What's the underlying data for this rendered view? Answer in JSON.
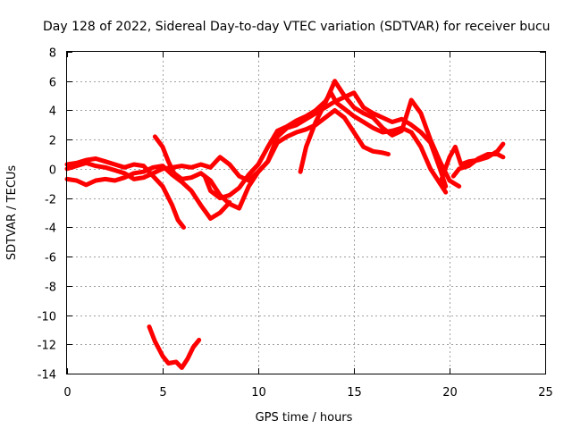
{
  "chart_data": {
    "type": "scatter",
    "title": "Day 128 of 2022, Sidereal Day-to-day VTEC variation (SDTVAR) for receiver bucu",
    "xlabel": "GPS time / hours",
    "ylabel": "SDTVAR / TECUs",
    "xlim": [
      0,
      25
    ],
    "ylim": [
      -14,
      8
    ],
    "xticks": [
      0,
      5,
      10,
      15,
      20,
      25
    ],
    "yticks": [
      8,
      6,
      4,
      2,
      0,
      -2,
      -4,
      -6,
      -8,
      -10,
      -12,
      -14
    ],
    "grid": true,
    "marker_color": "#ff0000",
    "series": [
      {
        "name": "track-1",
        "points": [
          [
            0,
            0.3
          ],
          [
            0.5,
            0.4
          ],
          [
            1,
            0.6
          ],
          [
            1.5,
            0.7
          ],
          [
            2,
            0.5
          ],
          [
            2.5,
            0.3
          ],
          [
            3,
            0.1
          ],
          [
            3.5,
            0.3
          ],
          [
            4,
            0.2
          ],
          [
            4.5,
            -0.5
          ],
          [
            5,
            -1.2
          ],
          [
            5.5,
            -2.5
          ],
          [
            5.8,
            -3.5
          ],
          [
            6.1,
            -4
          ]
        ]
      },
      {
        "name": "track-2",
        "points": [
          [
            0,
            -0.7
          ],
          [
            0.5,
            -0.8
          ],
          [
            1,
            -1.1
          ],
          [
            1.5,
            -0.8
          ],
          [
            2,
            -0.7
          ],
          [
            2.5,
            -0.8
          ],
          [
            3,
            -0.6
          ],
          [
            3.5,
            -0.3
          ],
          [
            4,
            -0.2
          ],
          [
            4.5,
            0.1
          ],
          [
            5,
            0.2
          ],
          [
            5.5,
            -0.4
          ],
          [
            6,
            -0.9
          ],
          [
            6.5,
            -1.5
          ],
          [
            7,
            -2.5
          ],
          [
            7.5,
            -3.4
          ],
          [
            8,
            -3
          ],
          [
            8.5,
            -2.3
          ]
        ]
      },
      {
        "name": "track-3",
        "points": [
          [
            0,
            0
          ],
          [
            0.5,
            0.2
          ],
          [
            1,
            0.4
          ],
          [
            1.5,
            0.2
          ],
          [
            2,
            0.1
          ],
          [
            2.5,
            -0.1
          ],
          [
            3,
            -0.3
          ],
          [
            3.5,
            -0.7
          ],
          [
            4,
            -0.6
          ],
          [
            4.5,
            -0.3
          ],
          [
            5,
            0
          ],
          [
            5.5,
            0.1
          ],
          [
            6,
            0.2
          ],
          [
            6.5,
            0.1
          ],
          [
            7,
            0.3
          ],
          [
            7.5,
            0.1
          ],
          [
            8,
            0.8
          ],
          [
            8.5,
            0.3
          ],
          [
            9,
            -0.5
          ],
          [
            9.5,
            -0.8
          ],
          [
            10,
            -0.2
          ],
          [
            10.5,
            0.5
          ],
          [
            11,
            1.8
          ],
          [
            11.5,
            2.2
          ],
          [
            12,
            2.5
          ],
          [
            12.5,
            2.7
          ],
          [
            13,
            3
          ],
          [
            13.5,
            3.5
          ],
          [
            14,
            4
          ],
          [
            14.5,
            3.5
          ],
          [
            15,
            2.5
          ],
          [
            15.5,
            1.5
          ],
          [
            16,
            1.2
          ],
          [
            16.5,
            1.1
          ],
          [
            16.8,
            1
          ]
        ]
      },
      {
        "name": "track-4",
        "points": [
          [
            4.6,
            2.2
          ],
          [
            5,
            1.5
          ],
          [
            5.3,
            0.5
          ],
          [
            5.6,
            -0.3
          ],
          [
            6,
            -0.7
          ],
          [
            6.5,
            -0.6
          ],
          [
            7,
            -0.3
          ],
          [
            7.5,
            -0.8
          ],
          [
            8,
            -1.8
          ],
          [
            8.5,
            -2.4
          ],
          [
            9,
            -2.7
          ],
          [
            9.5,
            -1.2
          ],
          [
            10,
            -0.2
          ],
          [
            10.5,
            0.5
          ],
          [
            11,
            2.2
          ],
          [
            11.5,
            2.8
          ],
          [
            12,
            3
          ],
          [
            12.5,
            3.4
          ],
          [
            13,
            3.8
          ],
          [
            13.5,
            4.2
          ],
          [
            14,
            4.6
          ],
          [
            14.5,
            4.9
          ],
          [
            15,
            5.2
          ],
          [
            15.5,
            4.2
          ],
          [
            16,
            3.8
          ],
          [
            16.5,
            3.5
          ],
          [
            17,
            3.2
          ],
          [
            17.5,
            3.4
          ],
          [
            18,
            3
          ],
          [
            18.5,
            2.5
          ],
          [
            19,
            1.8
          ],
          [
            19.5,
            0
          ],
          [
            19.8,
            -1.2
          ]
        ]
      },
      {
        "name": "track-5",
        "points": [
          [
            7.2,
            -0.5
          ],
          [
            7.5,
            -1.5
          ],
          [
            8,
            -2
          ],
          [
            8.5,
            -1.8
          ],
          [
            9,
            -1.3
          ],
          [
            9.5,
            -0.4
          ],
          [
            10,
            0.3
          ],
          [
            10.5,
            1.5
          ],
          [
            11,
            2.6
          ],
          [
            11.5,
            2.9
          ],
          [
            12,
            3.3
          ],
          [
            12.5,
            3.6
          ],
          [
            13,
            4
          ],
          [
            13.5,
            4.6
          ],
          [
            13.8,
            5.2
          ],
          [
            14.1,
            4.5
          ],
          [
            14.5,
            4.1
          ],
          [
            15,
            3.6
          ],
          [
            15.5,
            3.2
          ],
          [
            16,
            2.8
          ],
          [
            16.5,
            2.5
          ],
          [
            17,
            2.6
          ],
          [
            17.5,
            2.8
          ],
          [
            18,
            2.5
          ],
          [
            18.5,
            1.5
          ],
          [
            19,
            0
          ],
          [
            19.5,
            -1
          ],
          [
            19.8,
            -1.6
          ]
        ]
      },
      {
        "name": "track-6",
        "points": [
          [
            12.2,
            -0.2
          ],
          [
            12.5,
            1.5
          ],
          [
            13,
            3.2
          ],
          [
            13.5,
            4.5
          ],
          [
            14,
            6
          ],
          [
            14.5,
            5
          ],
          [
            15,
            4.2
          ],
          [
            15.5,
            3.8
          ],
          [
            16,
            3.5
          ],
          [
            16.5,
            2.8
          ],
          [
            17,
            2.3
          ],
          [
            17.5,
            2.6
          ],
          [
            18,
            4.7
          ],
          [
            18.5,
            3.8
          ],
          [
            19,
            2
          ],
          [
            19.5,
            0.5
          ],
          [
            20,
            -0.8
          ],
          [
            20.5,
            -1.2
          ]
        ]
      },
      {
        "name": "track-7",
        "points": [
          [
            19.5,
            -1
          ],
          [
            20,
            0.8
          ],
          [
            20.3,
            1.5
          ],
          [
            20.6,
            0.3
          ],
          [
            21,
            0.5
          ],
          [
            21.5,
            0.6
          ],
          [
            22,
            0.8
          ],
          [
            22.5,
            1.2
          ],
          [
            22.8,
            1.7
          ]
        ]
      },
      {
        "name": "track-8",
        "points": [
          [
            20.2,
            -0.5
          ],
          [
            20.5,
            0
          ],
          [
            21,
            0.2
          ],
          [
            21.5,
            0.7
          ],
          [
            22,
            1
          ],
          [
            22.5,
            1
          ],
          [
            22.8,
            0.8
          ]
        ]
      },
      {
        "name": "track-9",
        "points": [
          [
            4.3,
            -10.8
          ],
          [
            4.6,
            -11.8
          ],
          [
            5,
            -12.8
          ],
          [
            5.3,
            -13.3
          ],
          [
            5.7,
            -13.2
          ],
          [
            6,
            -13.6
          ],
          [
            6.3,
            -13
          ],
          [
            6.6,
            -12.2
          ],
          [
            6.9,
            -11.7
          ]
        ]
      }
    ]
  }
}
